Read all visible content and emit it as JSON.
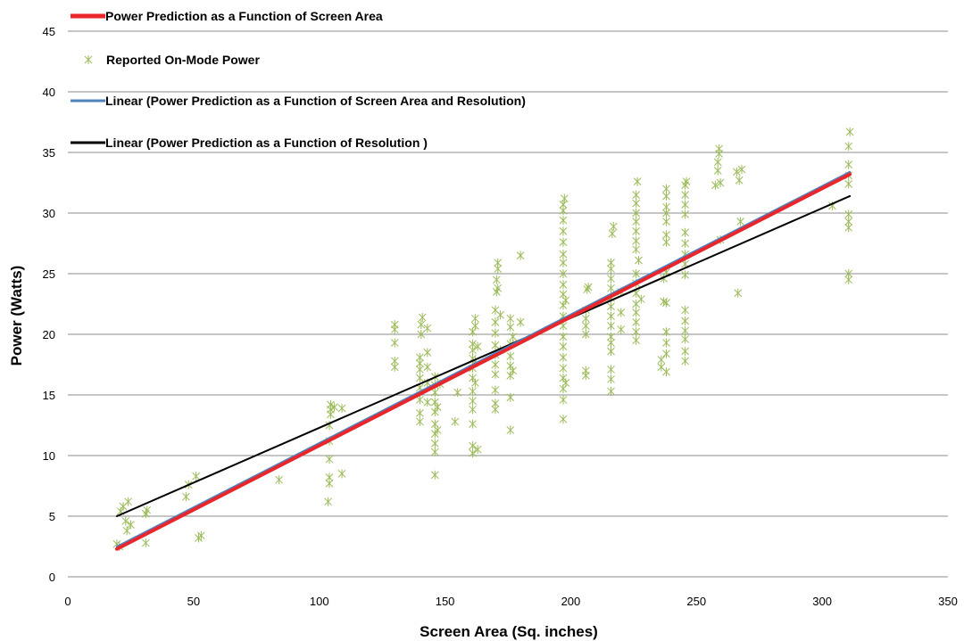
{
  "chart_data": {
    "type": "scatter",
    "title": "",
    "xlabel": "Screen Area (Sq. inches)",
    "ylabel": "Power (Watts)",
    "xlim": [
      0,
      350
    ],
    "ylim": [
      0,
      45
    ],
    "x_ticks": [
      0,
      50,
      100,
      150,
      200,
      250,
      300,
      350
    ],
    "y_ticks": [
      0,
      5,
      10,
      15,
      20,
      25,
      30,
      35,
      40,
      45
    ],
    "grid": "horizontal",
    "legend_position": "top-left",
    "colors": {
      "area_line": "#e8262c",
      "markers": "#9bbb59",
      "area_resolution_line": "#4f81bd",
      "resolution_line": "#000000",
      "grid": "#8c8c8c"
    },
    "legend": [
      {
        "label": "Power Prediction as a Function of Screen Area",
        "kind": "thick-line",
        "color": "#e8262c"
      },
      {
        "label": "Reported On-Mode Power",
        "kind": "marker",
        "color": "#9bbb59"
      },
      {
        "label": "Linear (Power Prediction as a Function of Screen Area and Resolution)",
        "kind": "line",
        "color": "#4f81bd"
      },
      {
        "label": "Linear (Power Prediction as a Function of Resolution )",
        "kind": "line",
        "color": "#000000"
      }
    ],
    "lines": [
      {
        "name": "Power Prediction as a Function of Screen Area",
        "x": [
          19.5,
          311
        ],
        "y": [
          2.3,
          33.2
        ],
        "color": "#e8262c",
        "width": 4
      },
      {
        "name": "Linear (Power Prediction as a Function of Screen Area and Resolution)",
        "x": [
          19.5,
          311
        ],
        "y": [
          2.5,
          33.4
        ],
        "color": "#4f81bd",
        "width": 2
      },
      {
        "name": "Linear (Power Prediction as a Function of Resolution )",
        "x": [
          19.5,
          311
        ],
        "y": [
          5.0,
          31.4
        ],
        "color": "#000000",
        "width": 2
      }
    ],
    "series": [
      {
        "name": "Reported On-Mode Power",
        "points": [
          [
            19.5,
            2.7
          ],
          [
            20.5,
            2.5
          ],
          [
            21,
            5.4
          ],
          [
            22,
            5.8
          ],
          [
            23,
            4.6
          ],
          [
            23.5,
            3.8
          ],
          [
            24,
            6.2
          ],
          [
            25,
            4.3
          ],
          [
            31,
            2.8
          ],
          [
            31,
            5.2
          ],
          [
            31.5,
            5.5
          ],
          [
            47,
            6.6
          ],
          [
            48,
            7.6
          ],
          [
            51,
            8.3
          ],
          [
            52,
            3.2
          ],
          [
            53,
            3.4
          ],
          [
            84,
            8.0
          ],
          [
            103.5,
            6.2
          ],
          [
            104,
            7.7
          ],
          [
            104,
            8.2
          ],
          [
            104,
            9.7
          ],
          [
            104,
            11.2
          ],
          [
            104,
            12.5
          ],
          [
            104.5,
            13.4
          ],
          [
            104.5,
            13.8
          ],
          [
            104.5,
            14.2
          ],
          [
            106,
            14.0
          ],
          [
            109,
            8.5
          ],
          [
            109,
            13.9
          ],
          [
            130,
            17.3
          ],
          [
            130,
            17.8
          ],
          [
            130,
            19.3
          ],
          [
            130,
            20.4
          ],
          [
            130,
            20.8
          ],
          [
            140,
            12.8
          ],
          [
            140,
            13.5
          ],
          [
            140,
            14.6
          ],
          [
            140,
            15.6
          ],
          [
            140,
            16.4
          ],
          [
            140,
            17.1
          ],
          [
            140,
            17.6
          ],
          [
            140,
            18.1
          ],
          [
            140.5,
            20.0
          ],
          [
            140.5,
            20.8
          ],
          [
            141,
            21.4
          ],
          [
            143,
            14.4
          ],
          [
            143,
            16.0
          ],
          [
            143,
            17.3
          ],
          [
            143,
            18.5
          ],
          [
            143,
            20.5
          ],
          [
            146,
            8.4
          ],
          [
            146,
            10.3
          ],
          [
            146,
            11.0
          ],
          [
            146,
            11.8
          ],
          [
            146,
            12.6
          ],
          [
            146,
            13.6
          ],
          [
            146,
            14.4
          ],
          [
            146,
            15.2
          ],
          [
            146,
            15.8
          ],
          [
            146,
            16.5
          ],
          [
            147,
            12.1
          ],
          [
            147,
            14.0
          ],
          [
            148,
            15.9
          ],
          [
            154,
            12.8
          ],
          [
            155,
            15.2
          ],
          [
            161,
            10.2
          ],
          [
            161,
            10.8
          ],
          [
            161,
            12.6
          ],
          [
            161,
            13.8
          ],
          [
            161,
            14.5
          ],
          [
            161,
            15.3
          ],
          [
            161,
            16.4
          ],
          [
            161,
            17.2
          ],
          [
            161,
            18.0
          ],
          [
            161,
            18.7
          ],
          [
            161,
            19.2
          ],
          [
            161,
            20.2
          ],
          [
            162,
            20.7
          ],
          [
            162,
            21.3
          ],
          [
            162,
            16.0
          ],
          [
            162,
            17.8
          ],
          [
            163,
            10.5
          ],
          [
            163,
            19.0
          ],
          [
            170,
            13.8
          ],
          [
            170,
            14.3
          ],
          [
            170,
            15.4
          ],
          [
            170,
            16.7
          ],
          [
            170,
            17.5
          ],
          [
            170,
            18.3
          ],
          [
            170,
            19.1
          ],
          [
            170,
            20.1
          ],
          [
            170,
            21.0
          ],
          [
            170,
            22.0
          ],
          [
            170.5,
            23.5
          ],
          [
            170.5,
            24.5
          ],
          [
            171,
            25.4
          ],
          [
            171,
            25.9
          ],
          [
            171,
            23.8
          ],
          [
            172,
            18.7
          ],
          [
            172,
            21.6
          ],
          [
            176,
            12.1
          ],
          [
            176,
            14.8
          ],
          [
            176,
            16.6
          ],
          [
            176,
            17.4
          ],
          [
            176,
            18.2
          ],
          [
            176,
            19.2
          ],
          [
            176,
            20.6
          ],
          [
            176,
            21.3
          ],
          [
            177,
            17.0
          ],
          [
            177,
            19.8
          ],
          [
            180,
            21.0
          ],
          [
            180,
            26.5
          ],
          [
            197,
            13.0
          ],
          [
            197,
            14.6
          ],
          [
            197,
            15.5
          ],
          [
            197,
            16.4
          ],
          [
            197,
            17.2
          ],
          [
            197,
            18.1
          ],
          [
            197,
            19.0
          ],
          [
            197,
            19.8
          ],
          [
            197,
            20.7
          ],
          [
            197,
            21.5
          ],
          [
            197,
            22.4
          ],
          [
            197,
            23.3
          ],
          [
            197,
            24.1
          ],
          [
            197,
            25.0
          ],
          [
            197,
            25.9
          ],
          [
            197,
            26.6
          ],
          [
            197,
            27.6
          ],
          [
            197,
            28.5
          ],
          [
            197,
            29.4
          ],
          [
            197,
            30.2
          ],
          [
            197,
            30.7
          ],
          [
            197.5,
            31.2
          ],
          [
            198,
            16.0
          ],
          [
            198,
            22.8
          ],
          [
            206,
            16.6
          ],
          [
            206,
            17.0
          ],
          [
            206,
            20.0
          ],
          [
            206,
            20.7
          ],
          [
            206,
            21.3
          ],
          [
            206,
            22.0
          ],
          [
            206.5,
            23.7
          ],
          [
            207,
            23.9
          ],
          [
            216,
            15.3
          ],
          [
            216,
            16.3
          ],
          [
            216,
            17.1
          ],
          [
            216,
            18.6
          ],
          [
            216,
            19.3
          ],
          [
            216,
            19.8
          ],
          [
            216,
            20.7
          ],
          [
            216,
            21.5
          ],
          [
            216,
            22.3
          ],
          [
            216,
            23.0
          ],
          [
            216,
            23.8
          ],
          [
            216,
            24.6
          ],
          [
            216,
            25.4
          ],
          [
            216,
            25.9
          ],
          [
            216.5,
            28.3
          ],
          [
            217,
            28.9
          ],
          [
            220,
            20.4
          ],
          [
            220,
            21.8
          ],
          [
            220,
            23.5
          ],
          [
            226,
            19.5
          ],
          [
            226,
            20.2
          ],
          [
            226,
            21.0
          ],
          [
            226,
            21.8
          ],
          [
            226,
            22.5
          ],
          [
            226,
            23.4
          ],
          [
            226,
            24.2
          ],
          [
            226,
            25.0
          ],
          [
            226,
            27.0
          ],
          [
            226,
            27.7
          ],
          [
            226,
            28.5
          ],
          [
            226,
            29.3
          ],
          [
            226,
            30.0
          ],
          [
            226,
            30.8
          ],
          [
            226,
            31.5
          ],
          [
            226.5,
            32.6
          ],
          [
            227,
            26.1
          ],
          [
            228,
            22.9
          ],
          [
            236,
            17.3
          ],
          [
            236,
            17.9
          ],
          [
            237,
            22.7
          ],
          [
            237,
            24.6
          ],
          [
            238,
            16.9
          ],
          [
            238,
            18.4
          ],
          [
            238,
            19.3
          ],
          [
            238,
            20.2
          ],
          [
            238,
            22.6
          ],
          [
            238,
            25.1
          ],
          [
            238,
            27.6
          ],
          [
            238,
            28.2
          ],
          [
            238,
            29.3
          ],
          [
            238,
            30.0
          ],
          [
            238,
            30.5
          ],
          [
            238,
            31.4
          ],
          [
            238,
            32.0
          ],
          [
            245.5,
            17.8
          ],
          [
            245.5,
            18.6
          ],
          [
            245.5,
            19.6
          ],
          [
            245.5,
            20.3
          ],
          [
            245.5,
            21.1
          ],
          [
            245.5,
            22.0
          ],
          [
            245.5,
            24.9
          ],
          [
            245.5,
            25.8
          ],
          [
            245.5,
            26.6
          ],
          [
            245.5,
            27.5
          ],
          [
            245.5,
            28.4
          ],
          [
            245.5,
            29.9
          ],
          [
            245.5,
            30.7
          ],
          [
            245.5,
            31.5
          ],
          [
            245.5,
            32.3
          ],
          [
            246,
            32.6
          ],
          [
            257.5,
            32.3
          ],
          [
            258.5,
            33.5
          ],
          [
            258.5,
            34.2
          ],
          [
            259,
            34.9
          ],
          [
            259,
            35.3
          ],
          [
            259.5,
            32.5
          ],
          [
            259.5,
            27.8
          ],
          [
            266,
            33.4
          ],
          [
            266.5,
            23.4
          ],
          [
            267,
            32.7
          ],
          [
            267.5,
            29.3
          ],
          [
            268,
            33.6
          ],
          [
            304,
            30.6
          ],
          [
            310.5,
            25.0
          ],
          [
            310.5,
            24.5
          ],
          [
            310.5,
            28.8
          ],
          [
            310.5,
            29.3
          ],
          [
            310.5,
            29.9
          ],
          [
            310.5,
            32.4
          ],
          [
            310.5,
            33.1
          ],
          [
            310.5,
            34.0
          ],
          [
            310.5,
            35.5
          ],
          [
            311,
            36.7
          ]
        ]
      }
    ]
  }
}
